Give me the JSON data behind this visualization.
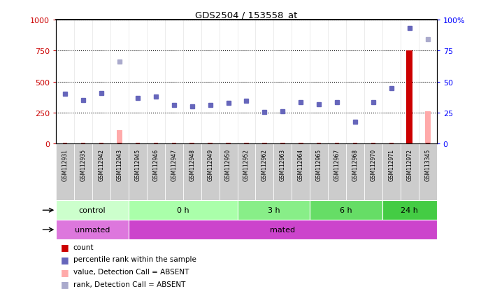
{
  "title": "GDS2504 / 153558_at",
  "samples": [
    "GSM112931",
    "GSM112935",
    "GSM112942",
    "GSM112943",
    "GSM112945",
    "GSM112946",
    "GSM112947",
    "GSM112948",
    "GSM112949",
    "GSM112950",
    "GSM112952",
    "GSM112962",
    "GSM112963",
    "GSM112964",
    "GSM112965",
    "GSM112967",
    "GSM112968",
    "GSM112970",
    "GSM112971",
    "GSM112972",
    "GSM113345"
  ],
  "count_values": [
    5,
    5,
    5,
    5,
    5,
    5,
    5,
    5,
    5,
    5,
    5,
    5,
    5,
    5,
    5,
    5,
    5,
    5,
    5,
    750,
    5
  ],
  "rank_absent": [
    false,
    false,
    false,
    true,
    false,
    false,
    false,
    false,
    false,
    false,
    false,
    false,
    false,
    false,
    false,
    false,
    false,
    false,
    false,
    false,
    true
  ],
  "count_absent": [
    true,
    true,
    true,
    true,
    true,
    true,
    true,
    true,
    true,
    true,
    true,
    true,
    true,
    true,
    true,
    true,
    true,
    true,
    true,
    false,
    true
  ],
  "value_absent_heights": [
    5,
    5,
    5,
    110,
    5,
    5,
    5,
    5,
    5,
    5,
    5,
    5,
    5,
    5,
    5,
    5,
    5,
    45,
    5,
    5,
    260
  ],
  "percentile_rank": [
    40,
    35,
    41,
    66,
    37,
    38,
    31,
    30,
    31,
    33,
    34.5,
    25.5,
    26,
    33.5,
    32,
    33.5,
    17.5,
    33.5,
    45,
    93,
    84
  ],
  "groups_time": [
    {
      "label": "control",
      "start": 0,
      "end": 4,
      "color": "#ccffcc"
    },
    {
      "label": "0 h",
      "start": 4,
      "end": 10,
      "color": "#aaffaa"
    },
    {
      "label": "3 h",
      "start": 10,
      "end": 14,
      "color": "#88ee88"
    },
    {
      "label": "6 h",
      "start": 14,
      "end": 18,
      "color": "#66dd66"
    },
    {
      "label": "24 h",
      "start": 18,
      "end": 21,
      "color": "#44cc44"
    }
  ],
  "groups_protocol": [
    {
      "label": "unmated",
      "start": 0,
      "end": 4,
      "color": "#dd77dd"
    },
    {
      "label": "mated",
      "start": 4,
      "end": 21,
      "color": "#cc44cc"
    }
  ],
  "ylim_left": [
    0,
    1000
  ],
  "ylim_right": [
    0,
    100
  ],
  "yticks_left": [
    0,
    250,
    500,
    750,
    1000
  ],
  "yticks_right": [
    0,
    25,
    50,
    75,
    100
  ],
  "count_color": "#cc0000",
  "rank_color_present": "#6666bb",
  "rank_color_absent": "#aaaacc",
  "value_absent_color": "#ffaaaa",
  "bg_color": "#ffffff",
  "label_area_color": "#cccccc",
  "time_label_color": "#000000",
  "proto_label_color": "#000000"
}
